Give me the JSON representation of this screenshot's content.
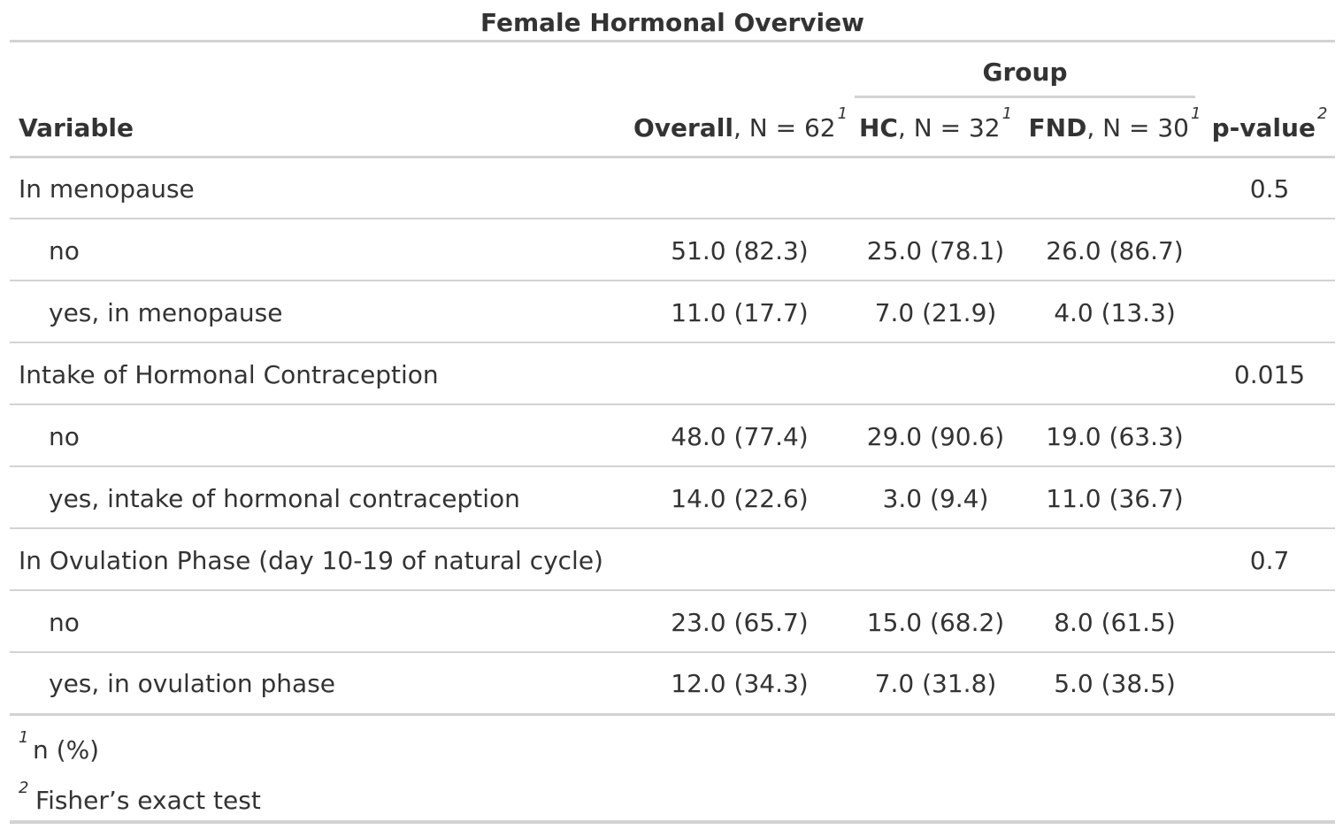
{
  "title": "Female Hormonal Overview",
  "spanner": "Group",
  "columns": {
    "variable": "Variable",
    "overall": {
      "bold": "Overall",
      "rest": ", N = 62",
      "fn": "1"
    },
    "hc": {
      "bold": "HC",
      "rest": ", N = 32",
      "fn": "1"
    },
    "fnd": {
      "bold": "FND",
      "rest": ", N = 30",
      "fn": "1"
    },
    "pvalue": {
      "bold": "p-value",
      "fn": "2"
    }
  },
  "rows": [
    {
      "label": "In menopause",
      "overall": "",
      "hc": "",
      "fnd": "",
      "p": "0.5"
    },
    {
      "label": "no",
      "overall": "51.0 (82.3)",
      "hc": "25.0 (78.1)",
      "fnd": "26.0 (86.7)",
      "p": ""
    },
    {
      "label": "yes, in menopause",
      "overall": "11.0 (17.7)",
      "hc": "7.0 (21.9)",
      "fnd": "4.0 (13.3)",
      "p": ""
    },
    {
      "label": "Intake of Hormonal Contraception",
      "overall": "",
      "hc": "",
      "fnd": "",
      "p": "0.015"
    },
    {
      "label": "no",
      "overall": "48.0 (77.4)",
      "hc": "29.0 (90.6)",
      "fnd": "19.0 (63.3)",
      "p": ""
    },
    {
      "label": "yes, intake of hormonal contraception",
      "overall": "14.0 (22.6)",
      "hc": "3.0 (9.4)",
      "fnd": "11.0 (36.7)",
      "p": ""
    },
    {
      "label": "In Ovulation Phase (day 10-19 of natural cycle)",
      "overall": "",
      "hc": "",
      "fnd": "",
      "p": "0.7"
    },
    {
      "label": "no",
      "overall": "23.0 (65.7)",
      "hc": "15.0 (68.2)",
      "fnd": "8.0 (61.5)",
      "p": ""
    },
    {
      "label": "yes, in ovulation phase",
      "overall": "12.0 (34.3)",
      "hc": "7.0 (31.8)",
      "fnd": "5.0 (38.5)",
      "p": ""
    }
  ],
  "footnotes": [
    {
      "mark": "1",
      "text": "n (%)"
    },
    {
      "mark": "2",
      "text": "Fisher’s exact test"
    }
  ]
}
